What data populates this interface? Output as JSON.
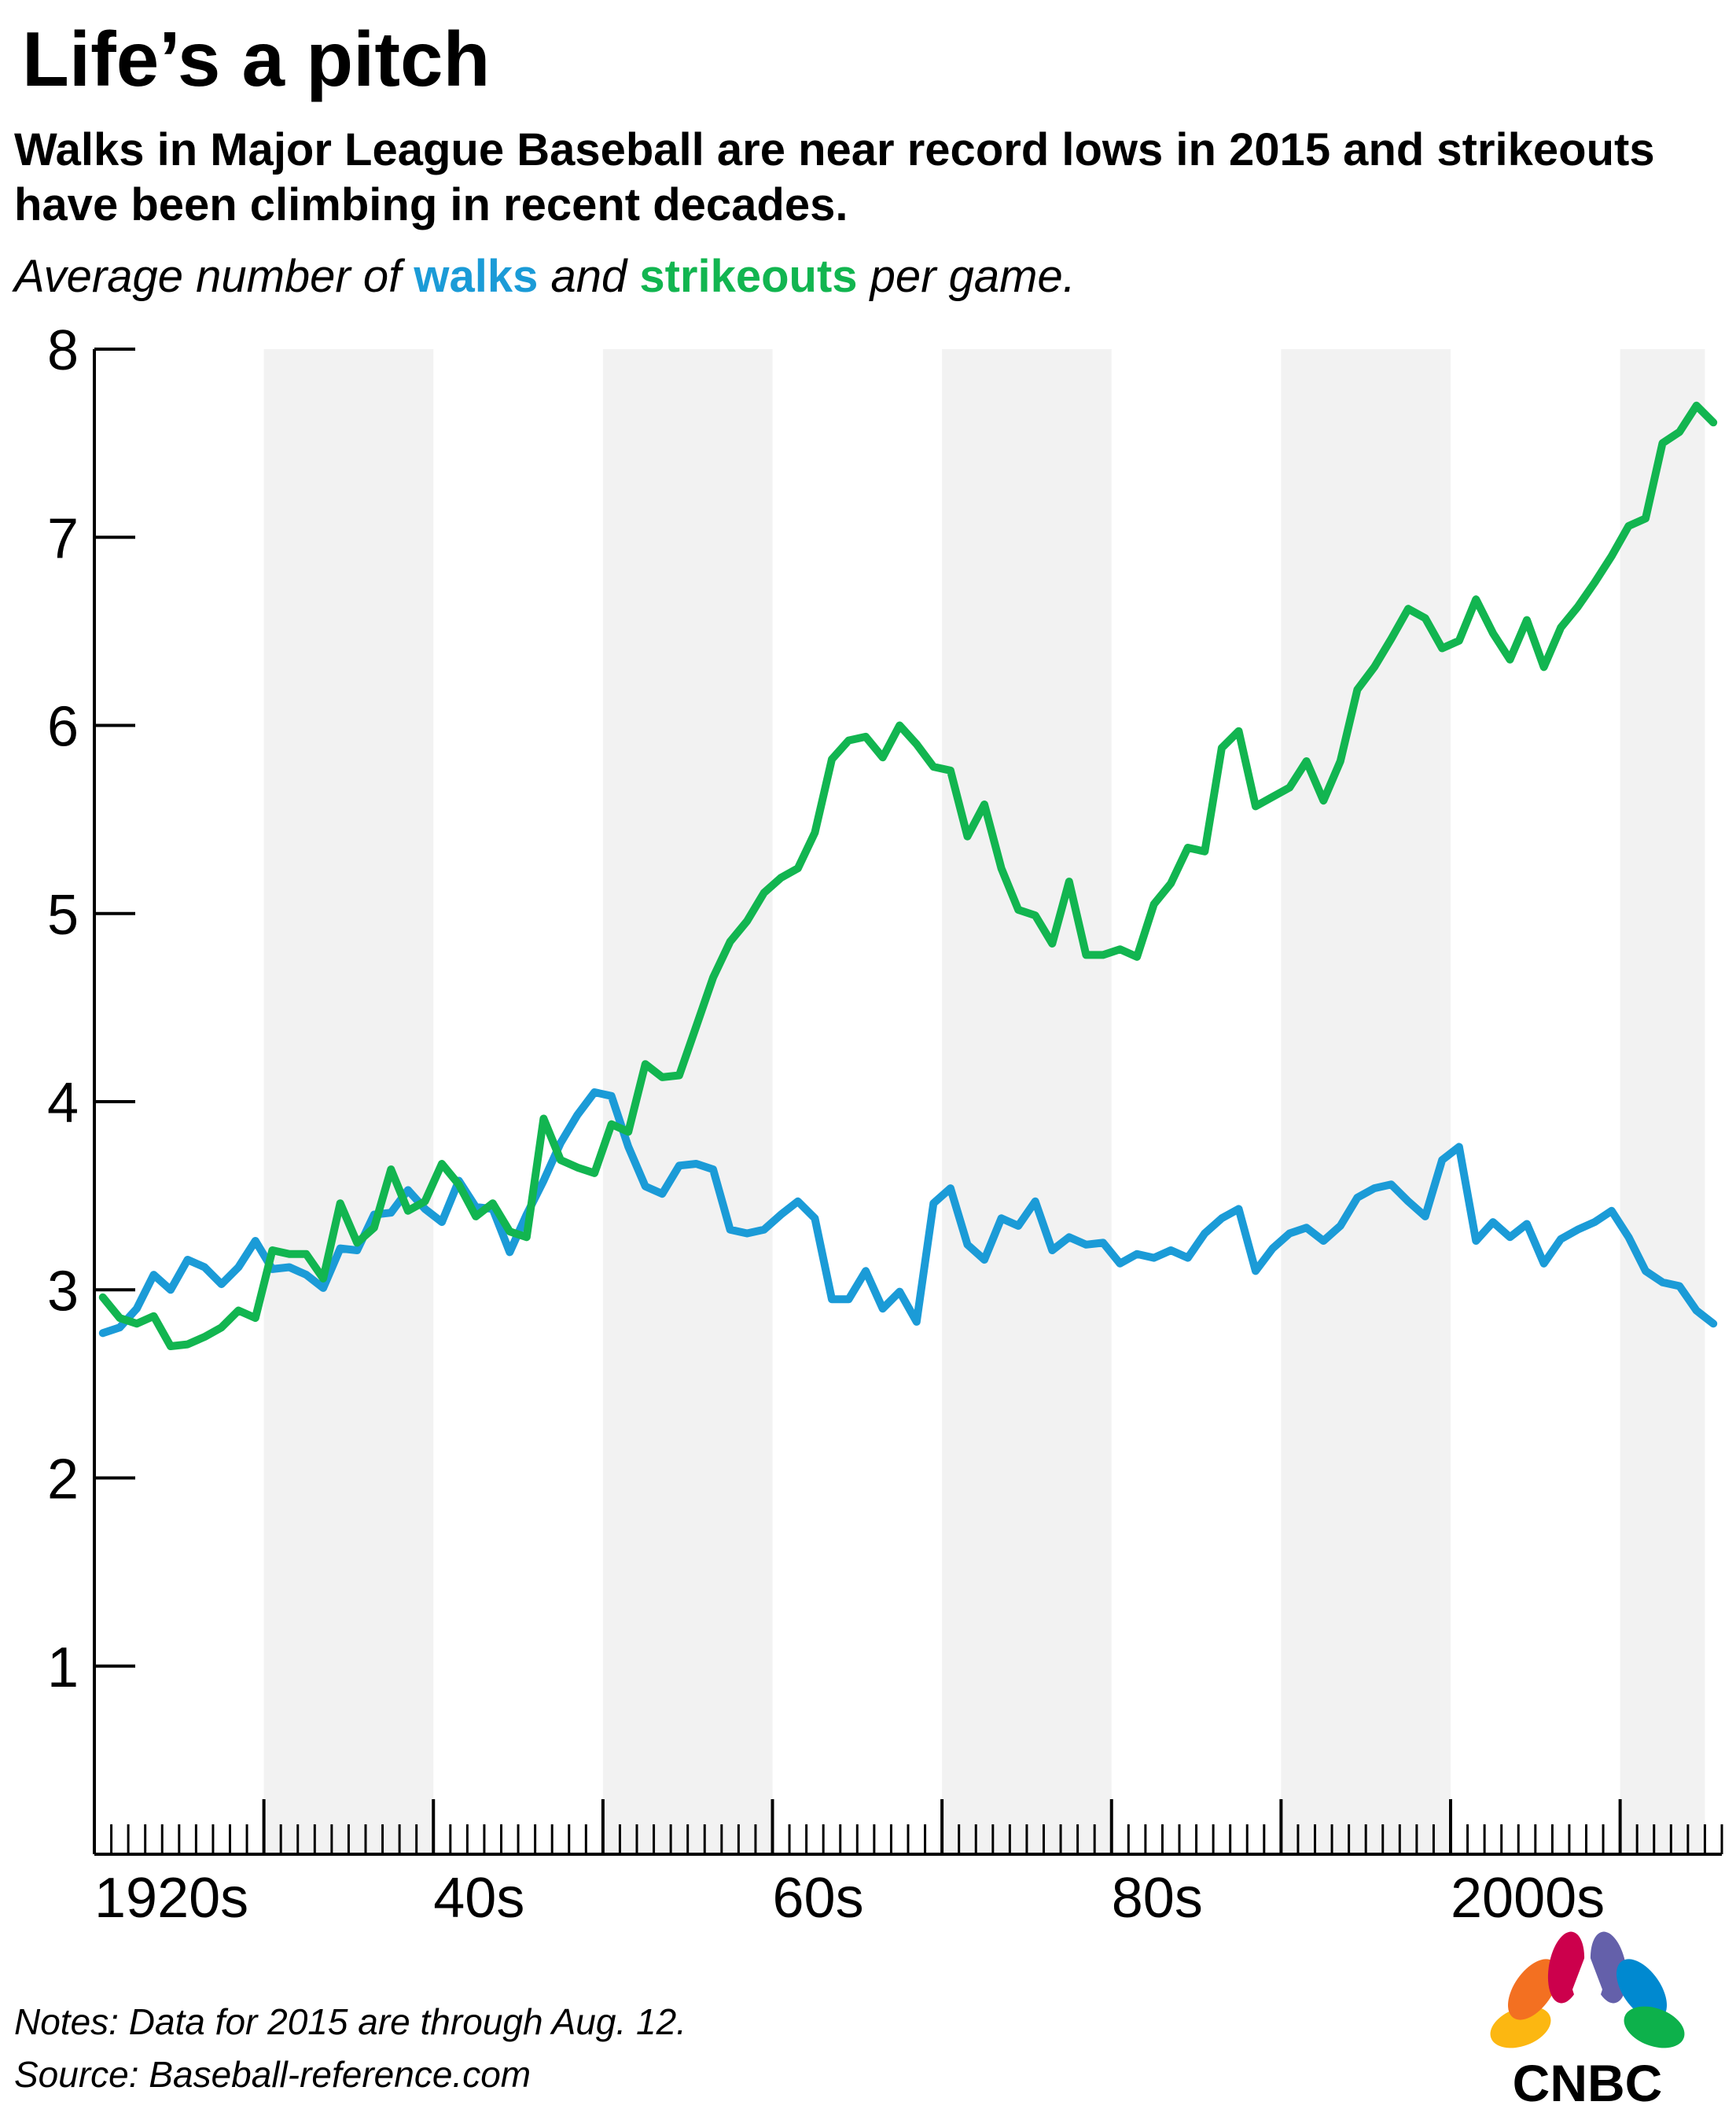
{
  "header": {
    "title": "Life’s a pitch",
    "subtitle": "Walks in Major League Baseball are near record lows in 2015 and strikeouts have been climbing in recent decades.",
    "desc_prefix": "Average number of ",
    "desc_walks": "walks",
    "desc_mid": " and ",
    "desc_strike": "strikeouts",
    "desc_suffix": " per game."
  },
  "footer": {
    "notes": "Notes: Data for 2015 are through Aug. 12.",
    "source": "Source: Baseball-reference.com"
  },
  "logo": {
    "text": "CNBC"
  },
  "colors": {
    "walks": "#1b9bd7",
    "strikeouts": "#12b550",
    "band": "#f2f2f2"
  },
  "chart_data": {
    "type": "line",
    "title": "Life’s a pitch",
    "xlabel": "",
    "ylabel": "",
    "x_start": 1920,
    "x_end": 2015,
    "xlim": [
      1920,
      2015
    ],
    "ylim": [
      0,
      8
    ],
    "y_ticks": [
      1,
      2,
      3,
      4,
      5,
      6,
      7,
      8
    ],
    "x_tick_labels": [
      {
        "x": 1920,
        "label": "1920s"
      },
      {
        "x": 1940,
        "label": "40s"
      },
      {
        "x": 1960,
        "label": "60s"
      },
      {
        "x": 1980,
        "label": "80s"
      },
      {
        "x": 2000,
        "label": "2000s"
      }
    ],
    "shaded_decades": [
      [
        1930,
        1940
      ],
      [
        1950,
        1960
      ],
      [
        1970,
        1980
      ],
      [
        1990,
        2000
      ],
      [
        2010,
        2015
      ]
    ],
    "grid": false,
    "legend": "none",
    "series": [
      {
        "name": "walks",
        "color": "#1b9bd7",
        "values": [
          2.77,
          2.8,
          2.9,
          3.08,
          3.0,
          3.16,
          3.12,
          3.03,
          3.12,
          3.26,
          3.11,
          3.12,
          3.08,
          3.01,
          3.22,
          3.21,
          3.4,
          3.41,
          3.53,
          3.43,
          3.36,
          3.58,
          3.44,
          3.43,
          3.2,
          3.4,
          3.58,
          3.78,
          3.93,
          4.05,
          4.03,
          3.76,
          3.55,
          3.51,
          3.66,
          3.67,
          3.64,
          3.32,
          3.3,
          3.32,
          3.4,
          3.47,
          3.38,
          2.95,
          2.95,
          3.1,
          2.9,
          2.99,
          2.83,
          3.46,
          3.54,
          3.24,
          3.16,
          3.38,
          3.34,
          3.47,
          3.21,
          3.28,
          3.24,
          3.25,
          3.14,
          3.19,
          3.17,
          3.21,
          3.17,
          3.3,
          3.38,
          3.43,
          3.1,
          3.22,
          3.3,
          3.33,
          3.26,
          3.34,
          3.49,
          3.54,
          3.56,
          3.47,
          3.39,
          3.69,
          3.76,
          3.26,
          3.36,
          3.28,
          3.35,
          3.14,
          3.27,
          3.32,
          3.36,
          3.42,
          3.28,
          3.1,
          3.04,
          3.02,
          2.89,
          2.82
        ]
      },
      {
        "name": "strikeouts",
        "color": "#12b550",
        "values": [
          2.96,
          2.85,
          2.82,
          2.86,
          2.7,
          2.71,
          2.75,
          2.8,
          2.89,
          2.85,
          3.21,
          3.19,
          3.19,
          3.06,
          3.46,
          3.25,
          3.33,
          3.64,
          3.42,
          3.47,
          3.67,
          3.56,
          3.39,
          3.46,
          3.31,
          3.28,
          3.91,
          3.69,
          3.65,
          3.62,
          3.88,
          3.84,
          4.2,
          4.13,
          4.14,
          4.4,
          4.66,
          4.85,
          4.96,
          5.11,
          5.19,
          5.24,
          5.43,
          5.82,
          5.92,
          5.94,
          5.83,
          6.0,
          5.9,
          5.78,
          5.76,
          5.41,
          5.58,
          5.24,
          5.02,
          4.99,
          4.84,
          5.17,
          4.78,
          4.78,
          4.81,
          4.77,
          5.05,
          5.16,
          5.35,
          5.33,
          5.88,
          5.97,
          5.57,
          5.62,
          5.67,
          5.81,
          5.6,
          5.81,
          6.19,
          6.31,
          6.46,
          6.62,
          6.57,
          6.41,
          6.45,
          6.67,
          6.49,
          6.35,
          6.56,
          6.31,
          6.52,
          6.63,
          6.76,
          6.9,
          7.06,
          7.1,
          7.5,
          7.56,
          7.7,
          7.61
        ]
      }
    ]
  }
}
